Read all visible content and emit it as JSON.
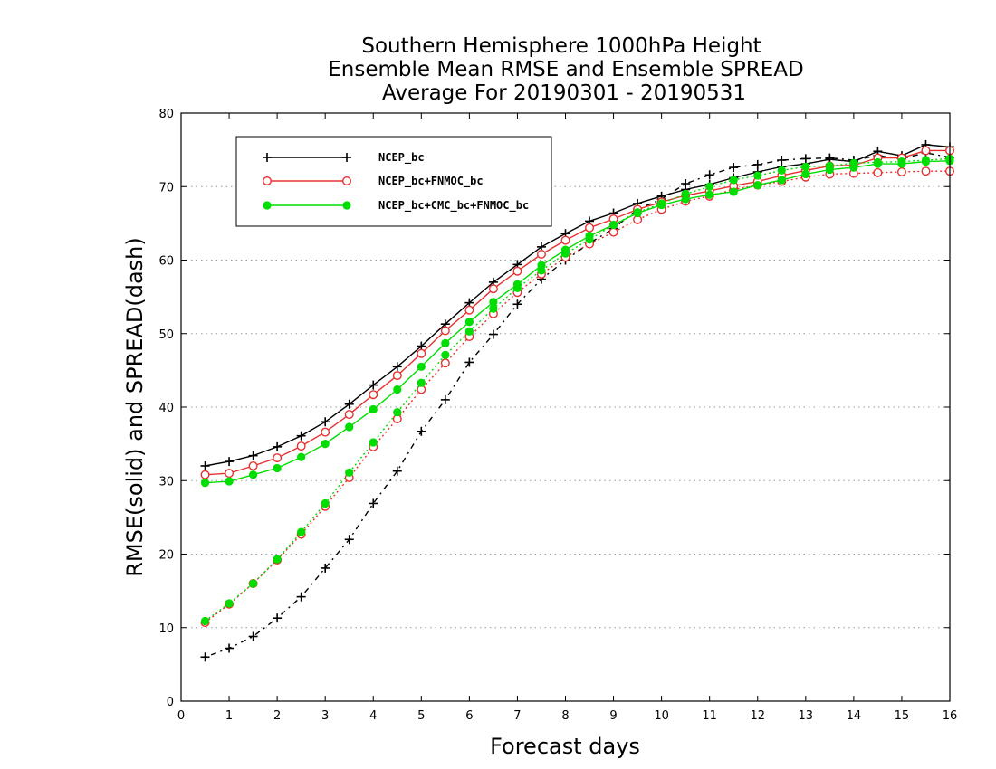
{
  "chart_data": {
    "type": "line",
    "title": [
      "Southern Hemisphere 1000hPa Height",
      "Ensemble Mean RMSE and Ensemble SPREAD",
      "Average For 20190301 - 20190531"
    ],
    "xlabel": "Forecast days",
    "ylabel": "RMSE(solid) and SPREAD(dash)",
    "xlim": [
      0,
      16
    ],
    "ylim": [
      0,
      80
    ],
    "xticks": [
      "0",
      "1",
      "2",
      "3",
      "4",
      "5",
      "6",
      "7",
      "8",
      "9",
      "10",
      "11",
      "12",
      "13",
      "14",
      "15",
      "16"
    ],
    "yticks": [
      "0",
      "10",
      "20",
      "30",
      "40",
      "50",
      "60",
      "70",
      "80"
    ],
    "grid": true,
    "legend_position": "top-left",
    "x": [
      0.5,
      1,
      1.5,
      2,
      2.5,
      3,
      3.5,
      4,
      4.5,
      5,
      5.5,
      6,
      6.5,
      7,
      7.5,
      8,
      8.5,
      9,
      9.5,
      10,
      10.5,
      11,
      11.5,
      12,
      12.5,
      13,
      13.5,
      14,
      14.5,
      15,
      15.5,
      16
    ],
    "series": [
      {
        "name": "NCEP_bc",
        "color": "#000000",
        "marker": "plus",
        "rmse": [
          32.0,
          32.6,
          33.4,
          34.6,
          36.1,
          38.0,
          40.4,
          43.0,
          45.5,
          48.3,
          51.3,
          54.2,
          57.0,
          59.4,
          61.8,
          63.6,
          65.3,
          66.4,
          67.7,
          68.7,
          69.6,
          70.3,
          71.2,
          72.0,
          72.7,
          73.1,
          73.7,
          73.4,
          74.8,
          74.2,
          75.7,
          75.4
        ],
        "spread": [
          6.0,
          7.2,
          8.8,
          11.3,
          14.2,
          18.1,
          22.0,
          26.9,
          31.3,
          36.7,
          41.0,
          46.1,
          49.9,
          54.0,
          57.4,
          60.0,
          62.3,
          64.3,
          66.9,
          68.3,
          70.4,
          71.6,
          72.6,
          73.0,
          73.6,
          73.8,
          73.9,
          73.6,
          74.2,
          73.8,
          74.6,
          74.0
        ]
      },
      {
        "name": "NCEP_bc+FNMOC_bc",
        "color": "#e83030",
        "marker": "open-circle",
        "rmse": [
          30.8,
          31.0,
          32.0,
          33.1,
          34.7,
          36.6,
          39.0,
          41.7,
          44.3,
          47.3,
          50.4,
          53.2,
          56.1,
          58.5,
          60.8,
          62.7,
          64.4,
          65.6,
          66.9,
          67.9,
          68.8,
          69.4,
          70.1,
          70.7,
          71.5,
          72.2,
          72.8,
          72.9,
          73.9,
          73.9,
          74.9,
          74.9
        ],
        "spread": [
          10.7,
          13.2,
          16.0,
          19.2,
          22.7,
          26.5,
          30.4,
          34.6,
          38.4,
          42.4,
          46.0,
          49.6,
          52.7,
          55.6,
          58.1,
          60.4,
          62.2,
          63.8,
          65.5,
          66.9,
          68.0,
          68.7,
          69.6,
          70.2,
          70.7,
          71.3,
          71.7,
          71.8,
          71.9,
          72.0,
          72.1,
          72.1
        ]
      },
      {
        "name": "NCEP_bc+CMC_bc+FNMOC_bc",
        "color": "#00dd00",
        "marker": "filled-circle",
        "rmse": [
          29.7,
          29.9,
          30.8,
          31.7,
          33.2,
          35.0,
          37.3,
          39.7,
          42.4,
          45.5,
          48.7,
          51.6,
          54.3,
          56.7,
          59.3,
          61.4,
          63.3,
          64.8,
          66.4,
          67.5,
          68.3,
          68.9,
          69.3,
          70.2,
          70.9,
          71.7,
          72.3,
          72.6,
          73.1,
          73.1,
          73.4,
          73.5
        ],
        "spread": [
          10.9,
          13.3,
          16.0,
          19.3,
          23.0,
          26.9,
          31.1,
          35.2,
          39.3,
          43.3,
          47.1,
          50.3,
          53.4,
          56.2,
          58.6,
          60.9,
          62.8,
          64.8,
          66.5,
          67.7,
          69.0,
          70.0,
          70.9,
          71.5,
          72.2,
          72.7,
          72.8,
          73.2,
          73.3,
          73.4,
          73.6,
          73.8
        ]
      }
    ]
  }
}
